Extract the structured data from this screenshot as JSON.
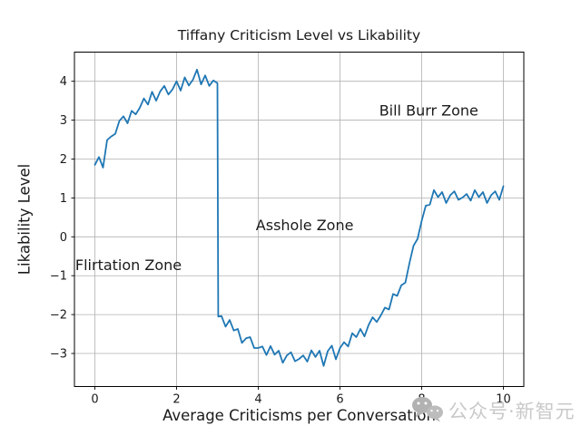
{
  "chart_data": {
    "type": "line",
    "title": "Tiffany Criticism Level vs Likability",
    "xlabel": "Average Criticisms per Conversation",
    "ylabel": "Likability Level",
    "xlim": [
      -0.5,
      10.5
    ],
    "ylim": [
      -3.85,
      4.75
    ],
    "x_ticks": [
      0,
      2,
      4,
      6,
      8,
      10
    ],
    "y_ticks": [
      -3,
      -2,
      -1,
      0,
      1,
      2,
      3,
      4
    ],
    "grid": true,
    "legend": false,
    "line_color": "#1f77b4",
    "grid_color": "#b0b0b0",
    "spine_color": "#000000",
    "text_color": "#1a1a1a",
    "annotations": [
      {
        "id": "flirtation-zone",
        "text": "Flirtation Zone",
        "x": -0.48,
        "y": -0.73
      },
      {
        "id": "asshole-zone",
        "text": "Asshole Zone",
        "x": 3.94,
        "y": 0.3
      },
      {
        "id": "bill-burr-zone",
        "text": "Bill Burr Zone",
        "x": 6.96,
        "y": 3.25
      }
    ],
    "series": [
      {
        "name": "likability",
        "points": [
          [
            0,
            1.85
          ],
          [
            0.1,
            2.05
          ],
          [
            0.2,
            1.78
          ],
          [
            0.3,
            2.49
          ],
          [
            0.4,
            2.58
          ],
          [
            0.5,
            2.65
          ],
          [
            0.6,
            2.98
          ],
          [
            0.7,
            3.1
          ],
          [
            0.8,
            2.92
          ],
          [
            0.9,
            3.24
          ],
          [
            1.0,
            3.15
          ],
          [
            1.1,
            3.32
          ],
          [
            1.2,
            3.56
          ],
          [
            1.3,
            3.4
          ],
          [
            1.4,
            3.73
          ],
          [
            1.5,
            3.5
          ],
          [
            1.6,
            3.74
          ],
          [
            1.7,
            3.88
          ],
          [
            1.8,
            3.66
          ],
          [
            1.9,
            3.79
          ],
          [
            2.0,
            4.0
          ],
          [
            2.1,
            3.76
          ],
          [
            2.2,
            4.1
          ],
          [
            2.3,
            3.89
          ],
          [
            2.4,
            4.04
          ],
          [
            2.5,
            4.3
          ],
          [
            2.6,
            3.92
          ],
          [
            2.7,
            4.15
          ],
          [
            2.8,
            3.88
          ],
          [
            2.9,
            4.02
          ],
          [
            3.0,
            3.95
          ],
          [
            3.02,
            -2.05
          ],
          [
            3.1,
            -2.04
          ],
          [
            3.2,
            -2.31
          ],
          [
            3.3,
            -2.14
          ],
          [
            3.4,
            -2.41
          ],
          [
            3.5,
            -2.37
          ],
          [
            3.6,
            -2.73
          ],
          [
            3.7,
            -2.61
          ],
          [
            3.8,
            -2.58
          ],
          [
            3.9,
            -2.86
          ],
          [
            4.0,
            -2.86
          ],
          [
            4.1,
            -2.82
          ],
          [
            4.2,
            -3.04
          ],
          [
            4.3,
            -2.81
          ],
          [
            4.4,
            -3.03
          ],
          [
            4.5,
            -2.93
          ],
          [
            4.6,
            -3.24
          ],
          [
            4.7,
            -3.05
          ],
          [
            4.8,
            -2.97
          ],
          [
            4.9,
            -3.2
          ],
          [
            5.0,
            -3.14
          ],
          [
            5.1,
            -3.05
          ],
          [
            5.2,
            -3.21
          ],
          [
            5.3,
            -2.92
          ],
          [
            5.4,
            -3.09
          ],
          [
            5.5,
            -2.93
          ],
          [
            5.6,
            -3.32
          ],
          [
            5.7,
            -2.94
          ],
          [
            5.8,
            -2.8
          ],
          [
            5.9,
            -3.15
          ],
          [
            6.0,
            -2.86
          ],
          [
            6.1,
            -2.71
          ],
          [
            6.2,
            -2.82
          ],
          [
            6.3,
            -2.48
          ],
          [
            6.4,
            -2.58
          ],
          [
            6.5,
            -2.37
          ],
          [
            6.6,
            -2.56
          ],
          [
            6.7,
            -2.27
          ],
          [
            6.8,
            -2.07
          ],
          [
            6.9,
            -2.19
          ],
          [
            7.0,
            -2.02
          ],
          [
            7.1,
            -1.82
          ],
          [
            7.2,
            -1.87
          ],
          [
            7.3,
            -1.47
          ],
          [
            7.4,
            -1.52
          ],
          [
            7.5,
            -1.25
          ],
          [
            7.6,
            -1.18
          ],
          [
            7.7,
            -0.68
          ],
          [
            7.8,
            -0.23
          ],
          [
            7.9,
            -0.05
          ],
          [
            8.0,
            0.41
          ],
          [
            8.1,
            0.8
          ],
          [
            8.2,
            0.83
          ],
          [
            8.3,
            1.2
          ],
          [
            8.4,
            1.02
          ],
          [
            8.5,
            1.15
          ],
          [
            8.6,
            0.87
          ],
          [
            8.7,
            1.07
          ],
          [
            8.8,
            1.17
          ],
          [
            8.9,
            0.95
          ],
          [
            9.0,
            1.01
          ],
          [
            9.1,
            1.1
          ],
          [
            9.2,
            0.93
          ],
          [
            9.3,
            1.2
          ],
          [
            9.4,
            1.02
          ],
          [
            9.5,
            1.15
          ],
          [
            9.6,
            0.87
          ],
          [
            9.7,
            1.07
          ],
          [
            9.8,
            1.17
          ],
          [
            9.9,
            0.95
          ],
          [
            10.0,
            1.3
          ]
        ]
      }
    ]
  },
  "watermark": {
    "text": "公众号·新智元",
    "icon": "wechat-icon",
    "text_color": "#c9c9c9",
    "icon_color": "#b2b2b2"
  }
}
